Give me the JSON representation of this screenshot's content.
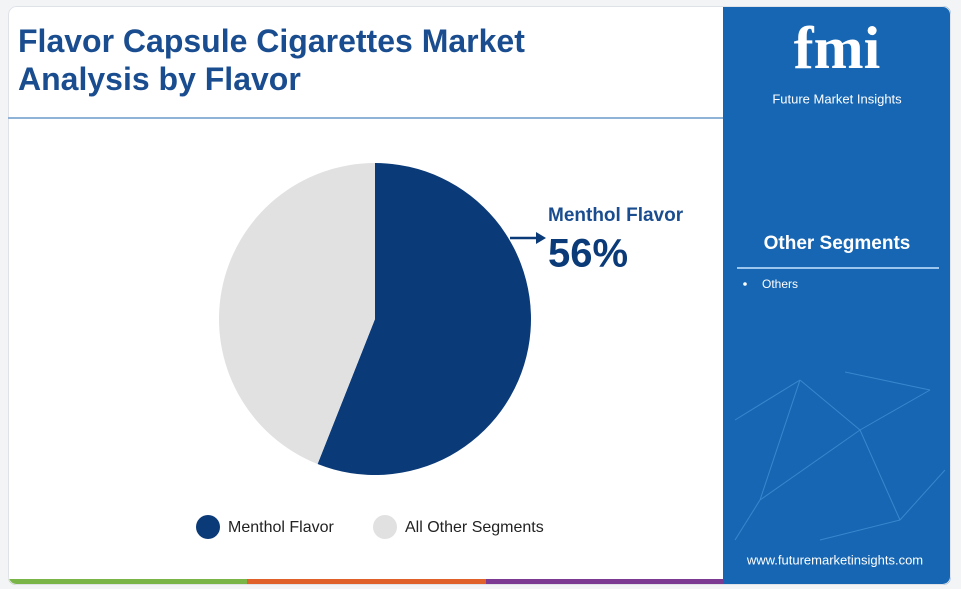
{
  "chart_data": {
    "type": "pie",
    "title": "Flavor Capsule Cigarettes Market Analysis by Flavor",
    "categories": [
      "Menthol Flavor",
      "All Other Segments"
    ],
    "values": [
      56,
      44
    ],
    "value_labels": [
      "56%",
      null
    ],
    "colors": [
      "#0b3a78",
      "#e1e1e1"
    ]
  },
  "brand": {
    "logo": "fmi",
    "name": "Future Market Insights",
    "website": "www.futuremarketinsights.com"
  },
  "side_panel": {
    "title": "Other Segments",
    "items": [
      "Others"
    ]
  }
}
